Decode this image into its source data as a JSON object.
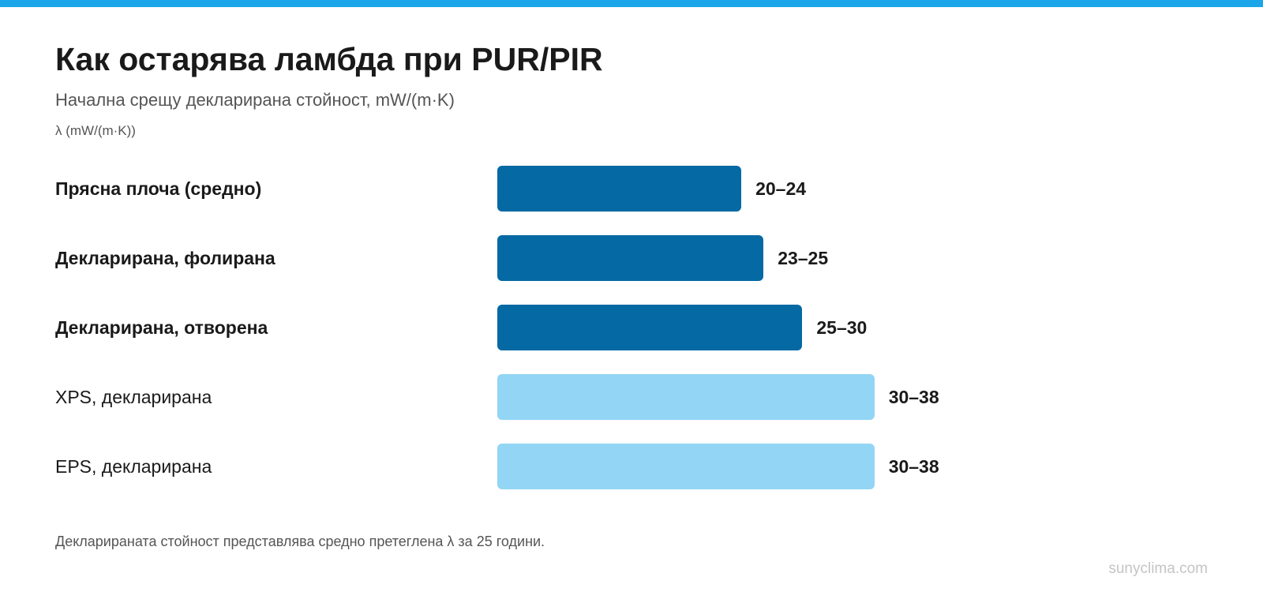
{
  "title": "Как остарява ламбда при PUR/PIR",
  "subtitle": "Начална срещу декларирана стойност, mW/(m·K)",
  "footnote": "Декларираната стойност представлява средно претеглена λ за 25 години.",
  "watermark": "sunyclima.com",
  "colors": {
    "accent_bar": "#1aa6e8",
    "dark_bar": "#0569a3",
    "light_bar": "#93d5f4",
    "text": "#1a1a1a",
    "muted_text": "#555555"
  },
  "chart_data": {
    "type": "bar",
    "orientation": "horizontal",
    "title": "Как остарява ламбда при PUR/PIR",
    "subtitle": "Начална срещу декларирана стойност, mW/(m·K)",
    "xlabel": "λ (mW/(m·K))",
    "categories": [
      "Прясна плоча (средно)",
      "Декларирана, фолирана",
      "Декларирана, отворена",
      "XPS, декларирана",
      "EPS, декларирана"
    ],
    "ranges": [
      [
        20,
        24
      ],
      [
        23,
        25
      ],
      [
        25,
        30
      ],
      [
        30,
        38
      ],
      [
        30,
        38
      ]
    ],
    "values": [
      22,
      24,
      27.5,
      34,
      34
    ],
    "value_labels": [
      "20–24",
      "23–25",
      "25–30",
      "30–38",
      "30–38"
    ],
    "emphasis": [
      true,
      true,
      true,
      false,
      false
    ],
    "xlim": [
      0,
      40
    ],
    "grid": false,
    "legend": "none"
  }
}
